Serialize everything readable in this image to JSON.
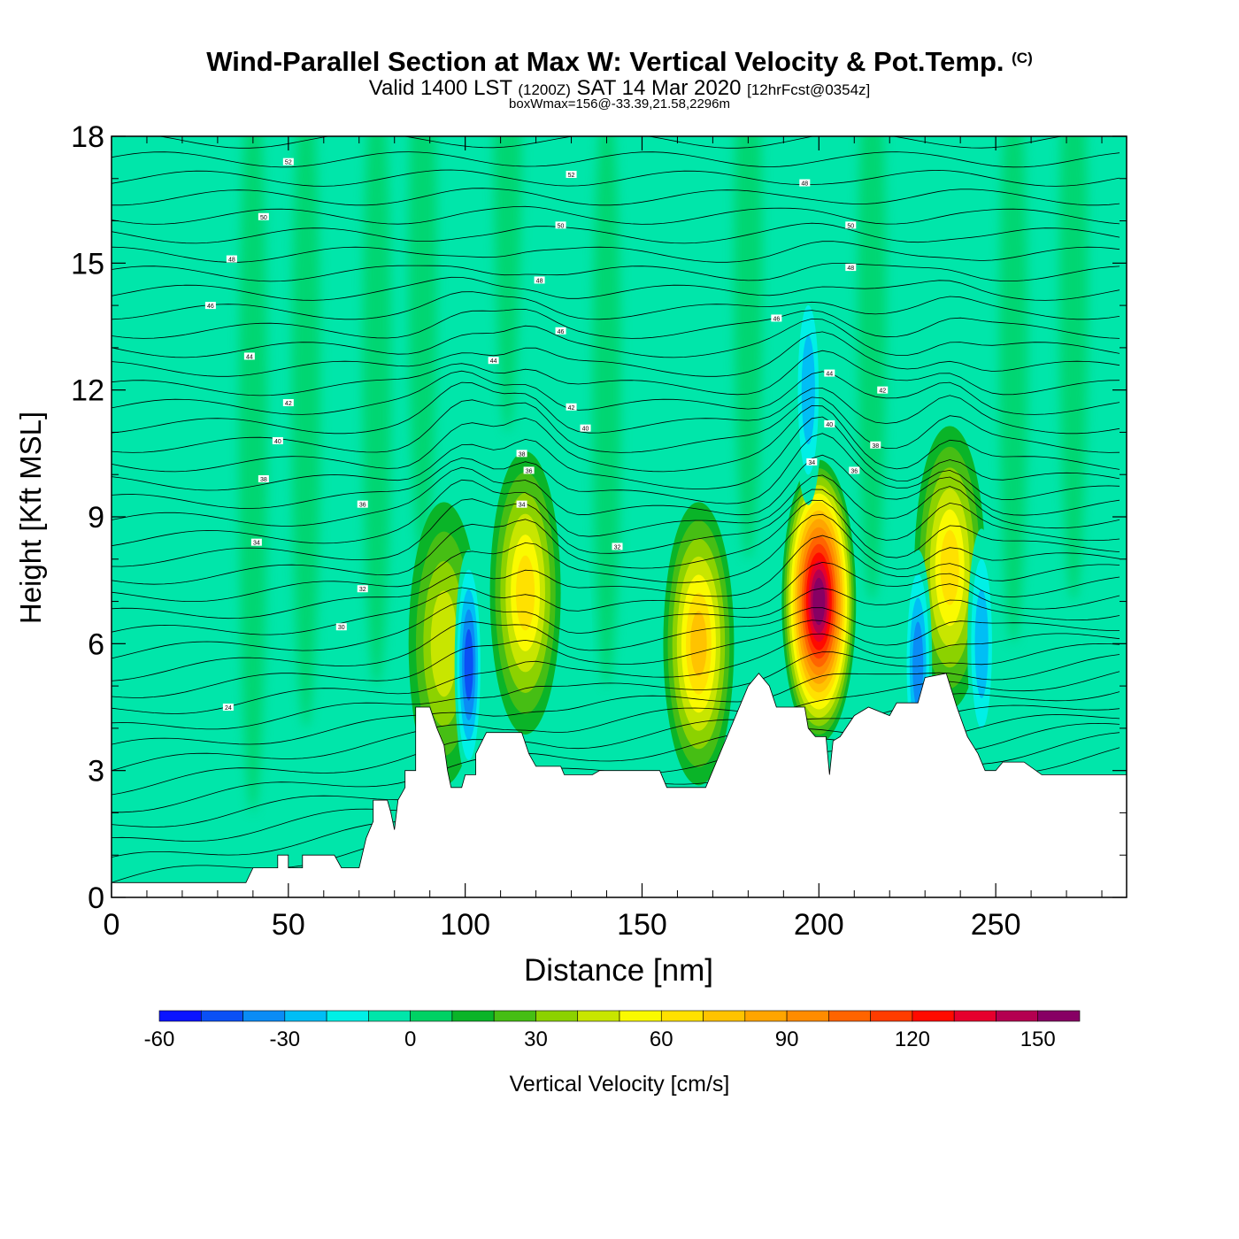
{
  "header": {
    "title": "Wind-Parallel Section at Max W: Vertical Velocity & Pot.Temp.",
    "copyright": "(C)",
    "valid_prefix": "Valid 1400 LST",
    "valid_utc": "(1200Z)",
    "valid_date": "SAT 14 Mar 2020",
    "forecast": "[12hrFcst@0354z]",
    "box_wmax": "boxWmax=156@-33.39,21.58,2296m"
  },
  "chart_data": {
    "type": "heatmap",
    "title": "Wind-Parallel Section at Max W: Vertical Velocity & Pot.Temp.",
    "xlabel": "Distance [nm]",
    "ylabel": "Height [Kft MSL]",
    "xlim": [
      0,
      287
    ],
    "ylim": [
      0,
      18
    ],
    "x_ticks": [
      0,
      50,
      100,
      150,
      200,
      250
    ],
    "y_ticks": [
      0,
      3,
      6,
      9,
      12,
      15,
      18
    ],
    "colorbar": {
      "label": "Vertical Velocity [cm/s]",
      "ticks": [
        -60,
        -30,
        0,
        30,
        60,
        90,
        120,
        150
      ],
      "range": [
        -60,
        160
      ],
      "bins": [
        {
          "from": -60,
          "to": -50,
          "color": "#0a14ff"
        },
        {
          "from": -50,
          "to": -40,
          "color": "#0a50f5"
        },
        {
          "from": -40,
          "to": -30,
          "color": "#0a8cf5"
        },
        {
          "from": -30,
          "to": -20,
          "color": "#00bef5"
        },
        {
          "from": -20,
          "to": -10,
          "color": "#00f0e6"
        },
        {
          "from": -10,
          "to": 0,
          "color": "#00e6aa"
        },
        {
          "from": 0,
          "to": 10,
          "color": "#00d264"
        },
        {
          "from": 10,
          "to": 20,
          "color": "#0ab428"
        },
        {
          "from": 20,
          "to": 30,
          "color": "#46be14"
        },
        {
          "from": 30,
          "to": 40,
          "color": "#8cd200"
        },
        {
          "from": 40,
          "to": 50,
          "color": "#c8e600"
        },
        {
          "from": 50,
          "to": 60,
          "color": "#fafa00"
        },
        {
          "from": 60,
          "to": 70,
          "color": "#ffe100"
        },
        {
          "from": 70,
          "to": 80,
          "color": "#ffc300"
        },
        {
          "from": 80,
          "to": 90,
          "color": "#ffa500"
        },
        {
          "from": 90,
          "to": 100,
          "color": "#ff8c00"
        },
        {
          "from": 100,
          "to": 110,
          "color": "#ff6400"
        },
        {
          "from": 110,
          "to": 120,
          "color": "#ff3c00"
        },
        {
          "from": 120,
          "to": 130,
          "color": "#ff0a00"
        },
        {
          "from": 130,
          "to": 140,
          "color": "#e6002d"
        },
        {
          "from": 140,
          "to": 150,
          "color": "#b40050"
        },
        {
          "from": 150,
          "to": 160,
          "color": "#870064"
        }
      ]
    },
    "updrafts": [
      {
        "x": 94,
        "z": 6.0,
        "w": 40
      },
      {
        "x": 117,
        "z": 7.2,
        "w": 62
      },
      {
        "x": 166,
        "z": 6.0,
        "w": 68
      },
      {
        "x": 200,
        "z": 7.0,
        "w": 156
      },
      {
        "x": 237,
        "z": 7.8,
        "w": 58
      }
    ],
    "downdrafts": [
      {
        "x": 101,
        "z": 5.5,
        "w": -50
      },
      {
        "x": 132,
        "z": 5.8,
        "w": -15
      },
      {
        "x": 197,
        "z": 12.0,
        "w": -35
      },
      {
        "x": 228,
        "z": 5.5,
        "w": -40
      },
      {
        "x": 246,
        "z": 6.0,
        "w": -30
      }
    ],
    "terrain": [
      [
        0,
        0.35
      ],
      [
        38,
        0.35
      ],
      [
        40,
        0.7
      ],
      [
        47,
        0.7
      ],
      [
        47,
        1.0
      ],
      [
        50,
        1.0
      ],
      [
        50,
        0.7
      ],
      [
        54,
        0.7
      ],
      [
        54,
        1.0
      ],
      [
        63,
        1.0
      ],
      [
        65,
        0.7
      ],
      [
        70,
        0.7
      ],
      [
        72,
        1.4
      ],
      [
        74,
        1.8
      ],
      [
        74,
        2.3
      ],
      [
        78,
        2.3
      ],
      [
        79,
        2.0
      ],
      [
        80,
        1.6
      ],
      [
        81,
        2.3
      ],
      [
        83,
        2.6
      ],
      [
        83,
        3.0
      ],
      [
        86,
        3.0
      ],
      [
        86,
        4.5
      ],
      [
        90,
        4.5
      ],
      [
        92,
        4.0
      ],
      [
        94,
        3.6
      ],
      [
        95,
        3.0
      ],
      [
        96,
        2.6
      ],
      [
        99,
        2.6
      ],
      [
        100,
        2.9
      ],
      [
        103,
        2.9
      ],
      [
        103,
        3.4
      ],
      [
        106,
        3.9
      ],
      [
        116,
        3.9
      ],
      [
        118,
        3.4
      ],
      [
        120,
        3.1
      ],
      [
        127,
        3.1
      ],
      [
        128,
        2.9
      ],
      [
        136,
        2.9
      ],
      [
        138,
        3.0
      ],
      [
        155,
        3.0
      ],
      [
        157,
        2.6
      ],
      [
        168,
        2.6
      ],
      [
        170,
        3.0
      ],
      [
        173,
        3.6
      ],
      [
        178,
        4.6
      ],
      [
        180,
        5.0
      ],
      [
        183,
        5.3
      ],
      [
        186,
        5.0
      ],
      [
        188,
        4.5
      ],
      [
        196,
        4.5
      ],
      [
        197,
        4.0
      ],
      [
        199,
        3.8
      ],
      [
        202,
        3.8
      ],
      [
        203,
        2.9
      ],
      [
        204,
        3.7
      ],
      [
        206,
        3.8
      ],
      [
        210,
        4.3
      ],
      [
        214,
        4.5
      ],
      [
        220,
        4.3
      ],
      [
        222,
        4.6
      ],
      [
        228,
        4.6
      ],
      [
        230,
        5.2
      ],
      [
        236,
        5.3
      ],
      [
        239,
        4.5
      ],
      [
        242,
        3.8
      ],
      [
        245,
        3.4
      ],
      [
        247,
        3.0
      ],
      [
        250,
        3.0
      ],
      [
        252,
        3.2
      ],
      [
        258,
        3.2
      ],
      [
        263,
        2.9
      ],
      [
        287,
        2.9
      ]
    ],
    "isentrope_labels": [
      {
        "x": 33,
        "z": 4.5,
        "text": "24"
      },
      {
        "x": 65,
        "z": 6.4,
        "text": "30"
      },
      {
        "x": 71,
        "z": 7.3,
        "text": "32"
      },
      {
        "x": 41,
        "z": 8.4,
        "text": "34"
      },
      {
        "x": 71,
        "z": 9.3,
        "text": "36"
      },
      {
        "x": 43,
        "z": 9.9,
        "text": "38"
      },
      {
        "x": 47,
        "z": 10.8,
        "text": "40"
      },
      {
        "x": 50,
        "z": 11.7,
        "text": "42"
      },
      {
        "x": 39,
        "z": 12.8,
        "text": "44"
      },
      {
        "x": 28,
        "z": 14.0,
        "text": "46"
      },
      {
        "x": 34,
        "z": 15.1,
        "text": "48"
      },
      {
        "x": 43,
        "z": 16.1,
        "text": "50"
      },
      {
        "x": 50,
        "z": 17.4,
        "text": "52"
      },
      {
        "x": 143,
        "z": 8.3,
        "text": "32"
      },
      {
        "x": 116,
        "z": 9.3,
        "text": "34"
      },
      {
        "x": 118,
        "z": 10.1,
        "text": "36"
      },
      {
        "x": 116,
        "z": 10.5,
        "text": "38"
      },
      {
        "x": 134,
        "z": 11.1,
        "text": "40"
      },
      {
        "x": 130,
        "z": 11.6,
        "text": "42"
      },
      {
        "x": 108,
        "z": 12.7,
        "text": "44"
      },
      {
        "x": 127,
        "z": 13.4,
        "text": "46"
      },
      {
        "x": 121,
        "z": 14.6,
        "text": "48"
      },
      {
        "x": 127,
        "z": 15.9,
        "text": "50"
      },
      {
        "x": 130,
        "z": 17.1,
        "text": "52"
      },
      {
        "x": 198,
        "z": 10.3,
        "text": "34"
      },
      {
        "x": 210,
        "z": 10.1,
        "text": "36"
      },
      {
        "x": 216,
        "z": 10.7,
        "text": "38"
      },
      {
        "x": 203,
        "z": 11.2,
        "text": "40"
      },
      {
        "x": 218,
        "z": 12.0,
        "text": "42"
      },
      {
        "x": 203,
        "z": 12.4,
        "text": "44"
      },
      {
        "x": 188,
        "z": 13.7,
        "text": "46"
      },
      {
        "x": 209,
        "z": 14.9,
        "text": "48"
      },
      {
        "x": 209,
        "z": 15.9,
        "text": "50"
      },
      {
        "x": 196,
        "z": 16.9,
        "text": "48"
      }
    ]
  }
}
